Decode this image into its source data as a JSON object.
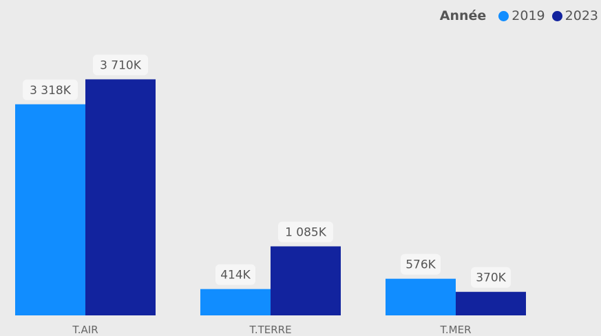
{
  "chart_data": {
    "type": "bar",
    "legend_title": "Année",
    "categories": [
      "T.AIR",
      "T.TERRE",
      "T.MER"
    ],
    "series": [
      {
        "name": "2019",
        "color": "#118DFF",
        "values": [
          3318,
          414,
          576
        ],
        "labels": [
          "3 318K",
          "414K",
          "576K"
        ]
      },
      {
        "name": "2023",
        "color": "#12239E",
        "values": [
          3710,
          1085,
          370
        ],
        "labels": [
          "3 710K",
          "1 085K",
          "370K"
        ]
      }
    ],
    "unit": "K",
    "legend_position": "top-right",
    "grid": false
  }
}
